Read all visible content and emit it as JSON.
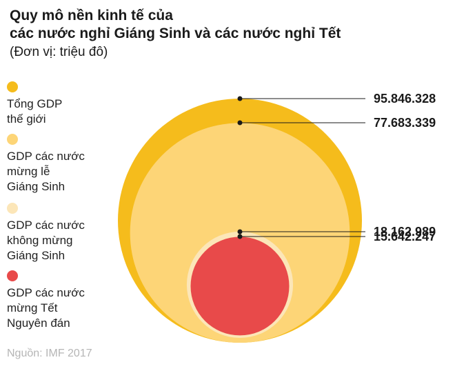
{
  "header": {
    "title_line1": "Quy mô nền kinh tế của",
    "title_line2": "các nước nghỉ Giáng Sinh và các nước nghỉ Tết",
    "subtitle": "(Đơn vị: triệu đô)"
  },
  "source": "Nguồn: IMF 2017",
  "colors": {
    "world": "#f5bc1c",
    "christmas": "#fdd577",
    "non_christmas": "#fce6b8",
    "tet": "#e84a4a"
  },
  "chart_data": {
    "type": "bubble",
    "title": "Quy mô nền kinh tế của các nước nghỉ Giáng Sinh và các nước nghỉ Tết",
    "unit": "(Đơn vị: triệu đô)",
    "series": [
      {
        "name": "Tổng GDP\nthế giới",
        "value": 95846328,
        "label": "95.846.328",
        "color": "#f5bc1c"
      },
      {
        "name": "GDP các nước\nmừng lễ\nGiáng Sinh",
        "value": 77683339,
        "label": "77.683.339",
        "color": "#fdd577"
      },
      {
        "name": "GDP các nước\nkhông mừng\nGiáng Sinh",
        "value": 18162989,
        "label": "18.162.989",
        "color": "#fce6b8"
      },
      {
        "name": "GDP các nước\nmừng Tết\nNguyên đán",
        "value": 15642247,
        "label": "15.642.247",
        "color": "#e84a4a"
      }
    ]
  }
}
